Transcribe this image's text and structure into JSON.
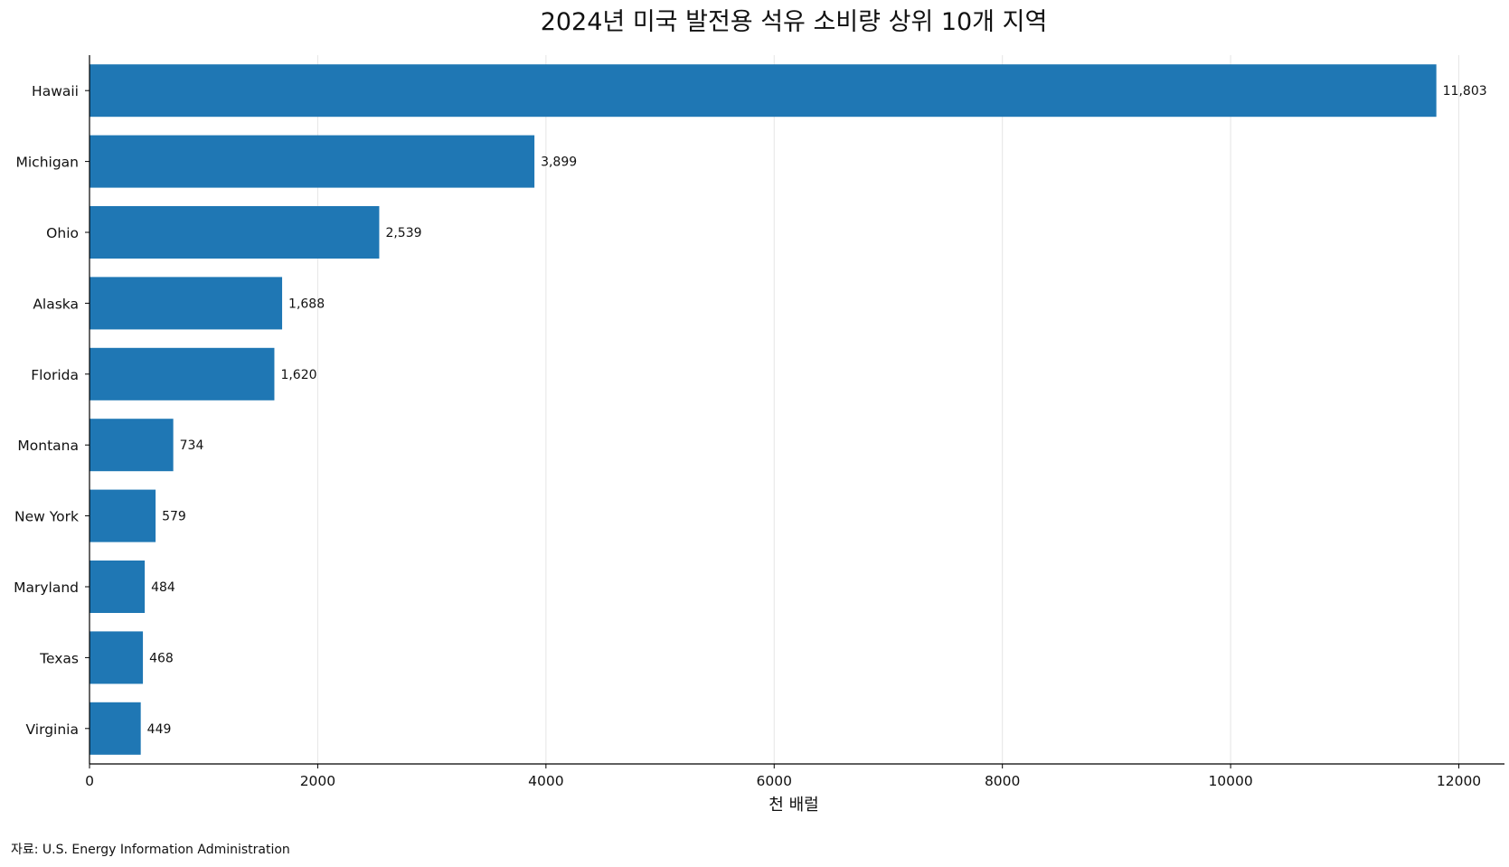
{
  "chart_data": {
    "type": "bar",
    "orientation": "horizontal",
    "title": "2024년 미국 발전용 석유 소비량 상위 10개 지역",
    "xlabel": "천 배럴",
    "ylabel": "",
    "categories": [
      "Hawaii",
      "Michigan",
      "Ohio",
      "Alaska",
      "Florida",
      "Montana",
      "New York",
      "Maryland",
      "Texas",
      "Virginia"
    ],
    "values": [
      11803,
      3899,
      2539,
      1688,
      1620,
      734,
      579,
      484,
      468,
      449
    ],
    "value_labels": [
      "11,803",
      "3,899",
      "2,539",
      "1,688",
      "1,620",
      "734",
      "579",
      "484",
      "468",
      "449"
    ],
    "xlim": [
      0,
      12400
    ],
    "xticks": [
      0,
      2000,
      4000,
      6000,
      8000,
      10000,
      12000
    ],
    "xtick_labels": [
      "0",
      "2000",
      "4000",
      "6000",
      "8000",
      "10000",
      "12000"
    ],
    "grid": "vertical",
    "legend": "none",
    "bar_color": "#1f77b4",
    "grid_color": "#e6e6e6",
    "axis_color": "#000000",
    "source_note": "자료: U.S. Energy Information Administration"
  }
}
